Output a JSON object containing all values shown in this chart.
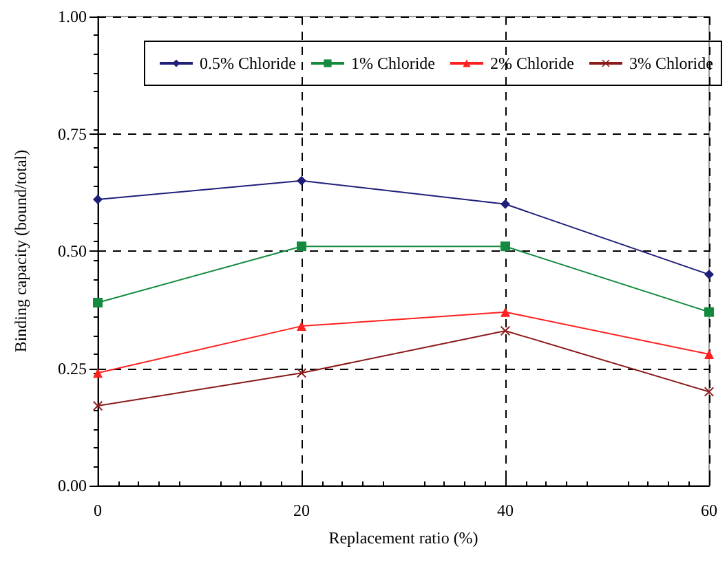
{
  "chart_data": {
    "type": "line",
    "xlabel": "Replacement ratio (%)",
    "ylabel": "Binding capacity (bound/total)",
    "x": [
      0,
      20,
      40,
      60
    ],
    "xlim": [
      0,
      60
    ],
    "xticks": [
      0,
      20,
      40,
      60
    ],
    "ylim": [
      0,
      1
    ],
    "yticks": [
      {
        "value": 0,
        "label": "0.00"
      },
      {
        "value": 0.25,
        "label": "0.25"
      },
      {
        "value": 0.5,
        "label": "0.50"
      },
      {
        "value": 0.75,
        "label": "0.75"
      },
      {
        "value": 1,
        "label": "1.00"
      }
    ],
    "grid": true,
    "legend": "top",
    "line_style": "solid",
    "series": [
      {
        "name": "0.5% Chloride",
        "color": "#1f1f7a",
        "marker": "diamond",
        "values": [
          0.61,
          0.65,
          0.6,
          0.45
        ]
      },
      {
        "name": "1% Chloride",
        "color": "#138a3e",
        "marker": "square",
        "values": [
          0.39,
          0.51,
          0.51,
          0.37
        ]
      },
      {
        "name": "2% Chloride",
        "color": "#ff2020",
        "marker": "triangle",
        "values": [
          0.24,
          0.34,
          0.37,
          0.28
        ]
      },
      {
        "name": "3% Chloride",
        "color": "#8b1a1a",
        "marker": "cross",
        "values": [
          0.17,
          0.24,
          0.33,
          0.2
        ]
      }
    ]
  }
}
